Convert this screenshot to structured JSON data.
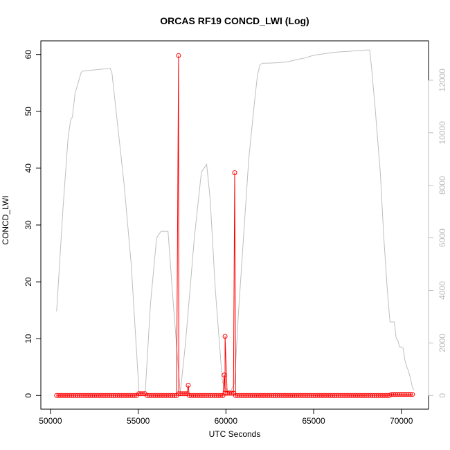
{
  "chart_data": {
    "type": "line",
    "title": "ORCAS RF19 CONCD_LWI (Log)",
    "xlabel": "UTC Seconds",
    "ylabel": "CONCD_LWI",
    "x_ticks": [
      50000,
      55000,
      60000,
      65000,
      70000
    ],
    "x_tick_labels": [
      "50000",
      "55000",
      "60000",
      "65000",
      "70000"
    ],
    "xlim": [
      49450,
      71550
    ],
    "ylim": [
      -2.4,
      62.4
    ],
    "y_ticks": [
      0,
      10,
      20,
      30,
      40,
      50,
      60
    ],
    "y_tick_labels": [
      "0",
      "10",
      "20",
      "30",
      "40",
      "50",
      "60"
    ],
    "y2lim": [
      -520,
      13500
    ],
    "y2_ticks": [
      0,
      2000,
      4000,
      6000,
      8000,
      10000,
      12000
    ],
    "y2_tick_labels": [
      "0",
      "2000",
      "4000",
      "6000",
      "8000",
      "10000",
      "12000"
    ],
    "grid": false,
    "colors": {
      "concentration": "#ff0000",
      "altitude": "#bebebe",
      "axis": "#000000",
      "secondary_axis": "#bdbdbd"
    },
    "series": [
      {
        "role": "concentration",
        "style": "line-and-open-circles",
        "x_start": 50350,
        "x_end": 70700,
        "x_step": 120,
        "baseline": 0,
        "elevated_ranges": [
          {
            "x": [
              55000,
              55500
            ],
            "y": 0.3
          },
          {
            "x": [
              57300,
              57900
            ],
            "y": 0.3
          },
          {
            "x": [
              59900,
              60500
            ],
            "y": 0.4
          },
          {
            "x": [
              69400,
              70700
            ],
            "y": 0.2
          }
        ],
        "peaks": [
          {
            "x": 57300,
            "y": 59.8
          },
          {
            "x": 57850,
            "y": 1.8
          },
          {
            "x": 59900,
            "y": 3.6
          },
          {
            "x": 59950,
            "y": 10.4
          },
          {
            "x": 60500,
            "y": 39.2
          }
        ]
      },
      {
        "role": "altitude",
        "axis": "right",
        "style": "line",
        "x": [
          50350,
          50700,
          51000,
          51150,
          51250,
          51400,
          51750,
          51850,
          53400,
          53500,
          54200,
          54600,
          55050,
          55400,
          55700,
          56050,
          56300,
          56700,
          57000,
          57400,
          57700,
          58200,
          58600,
          58900,
          59100,
          59400,
          59800,
          60050,
          60300,
          60500,
          60700,
          61000,
          61300,
          61600,
          61800,
          61950,
          62100,
          62200,
          62350,
          63000,
          63500,
          64000,
          64500,
          65000,
          65500,
          66000,
          66500,
          67000,
          67500,
          68000,
          68200,
          68300,
          68500,
          68800,
          69000,
          69200,
          69350,
          69400,
          69600,
          69700,
          69800,
          69900,
          70000,
          70100,
          70200,
          70300,
          70400,
          70500,
          70600,
          70700
        ],
        "y": [
          3200,
          7000,
          9800,
          10500,
          10600,
          11500,
          12300,
          12350,
          12450,
          12300,
          8000,
          5000,
          100,
          150,
          3500,
          6000,
          6250,
          6250,
          3500,
          100,
          2000,
          6000,
          8500,
          8800,
          7500,
          4000,
          500,
          200,
          200,
          500,
          3000,
          6000,
          9000,
          11000,
          12200,
          12600,
          12650,
          12650,
          12650,
          12670,
          12700,
          12780,
          12850,
          12950,
          13000,
          13050,
          13080,
          13100,
          13130,
          13150,
          13150,
          12500,
          11000,
          8500,
          6000,
          4000,
          2800,
          2800,
          2800,
          2200,
          2100,
          1850,
          1850,
          1800,
          1350,
          1100,
          950,
          700,
          400,
          200
        ]
      }
    ]
  }
}
